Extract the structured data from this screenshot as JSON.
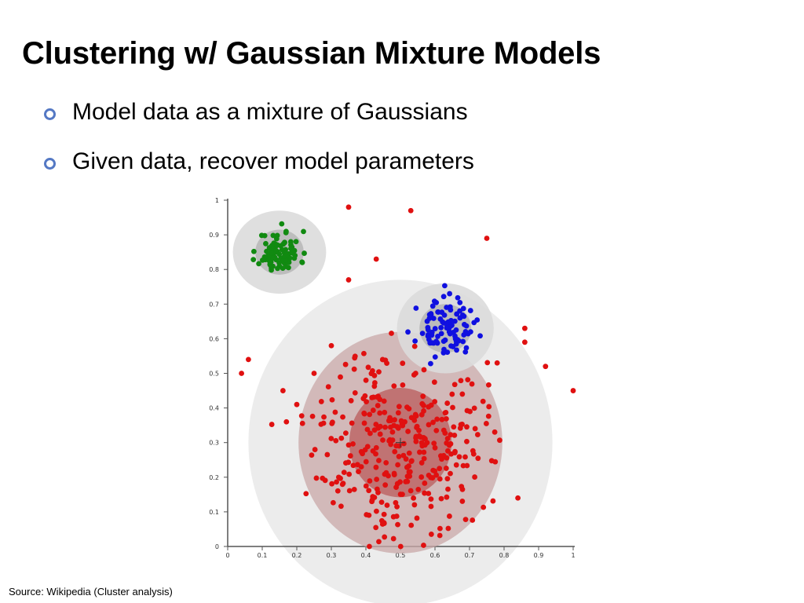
{
  "slide": {
    "title": "Clustering w/ Gaussian Mixture Models",
    "bullets": [
      {
        "icon": "ring-bullet-icon",
        "text": "Model data as a mixture of Gaussians"
      },
      {
        "icon": "ring-bullet-icon",
        "text": "Given data, recover model parameters"
      }
    ],
    "source": "Source: Wikipedia (Cluster analysis)"
  },
  "colors": {
    "bullet_ring": "#5478c4",
    "green": "#118a11",
    "blue": "#1010e0",
    "red": "#e01010",
    "ellipse_outer": "#dcdcdc",
    "ellipse_mid": "#c9a8a8",
    "ellipse_inner": "#bb6262"
  },
  "chart_data": {
    "type": "scatter",
    "title": "",
    "xlabel": "",
    "ylabel": "",
    "xlim": [
      0,
      1
    ],
    "ylim": [
      0,
      1
    ],
    "x_ticks": [
      "0",
      "0.1",
      "0.2",
      "0.3",
      "0.4",
      "0.5",
      "0.6",
      "0.7",
      "0.8",
      "0.9",
      "1"
    ],
    "y_ticks": [
      "0",
      "0.1",
      "0.2",
      "0.3",
      "0.4",
      "0.5",
      "0.6",
      "0.7",
      "0.8",
      "0.9",
      "1"
    ],
    "grid": false,
    "legend": "none",
    "clusters": [
      {
        "color": "green",
        "center": [
          0.15,
          0.85
        ],
        "spread": [
          0.03,
          0.03
        ],
        "count": 90,
        "seed": 11
      },
      {
        "color": "blue",
        "center": [
          0.63,
          0.63
        ],
        "spread": [
          0.04,
          0.04
        ],
        "count": 95,
        "seed": 23
      },
      {
        "color": "red",
        "center": [
          0.5,
          0.3
        ],
        "spread": [
          0.12,
          0.13
        ],
        "count": 330,
        "seed": 37
      }
    ],
    "outliers": [
      [
        0.35,
        0.98
      ],
      [
        0.53,
        0.97
      ],
      [
        0.75,
        0.89
      ],
      [
        0.43,
        0.83
      ],
      [
        0.35,
        0.77
      ],
      [
        0.86,
        0.63
      ],
      [
        0.86,
        0.59
      ],
      [
        0.92,
        0.52
      ],
      [
        1.0,
        0.45
      ],
      [
        0.06,
        0.54
      ],
      [
        0.04,
        0.5
      ],
      [
        0.16,
        0.45
      ],
      [
        0.17,
        0.36
      ],
      [
        0.84,
        0.14
      ],
      [
        0.3,
        0.58
      ],
      [
        0.78,
        0.53
      ],
      [
        0.25,
        0.5
      ],
      [
        0.2,
        0.41
      ]
    ],
    "gaussian_ellipses": [
      {
        "color": "green",
        "center": [
          0.15,
          0.85
        ],
        "radii_2sd": [
          0.135,
          0.12
        ],
        "radii_1sd": [
          0.07,
          0.065
        ]
      },
      {
        "color": "blue",
        "center": [
          0.63,
          0.63
        ],
        "radii_2sd": [
          0.14,
          0.13
        ],
        "radii_1sd": [
          0.075,
          0.07
        ]
      },
      {
        "color": "red",
        "center": [
          0.5,
          0.3
        ],
        "radii_3sd": [
          0.44,
          0.47
        ],
        "radii_2sd": [
          0.295,
          0.32
        ],
        "radii_1sd": [
          0.148,
          0.158
        ]
      }
    ]
  }
}
